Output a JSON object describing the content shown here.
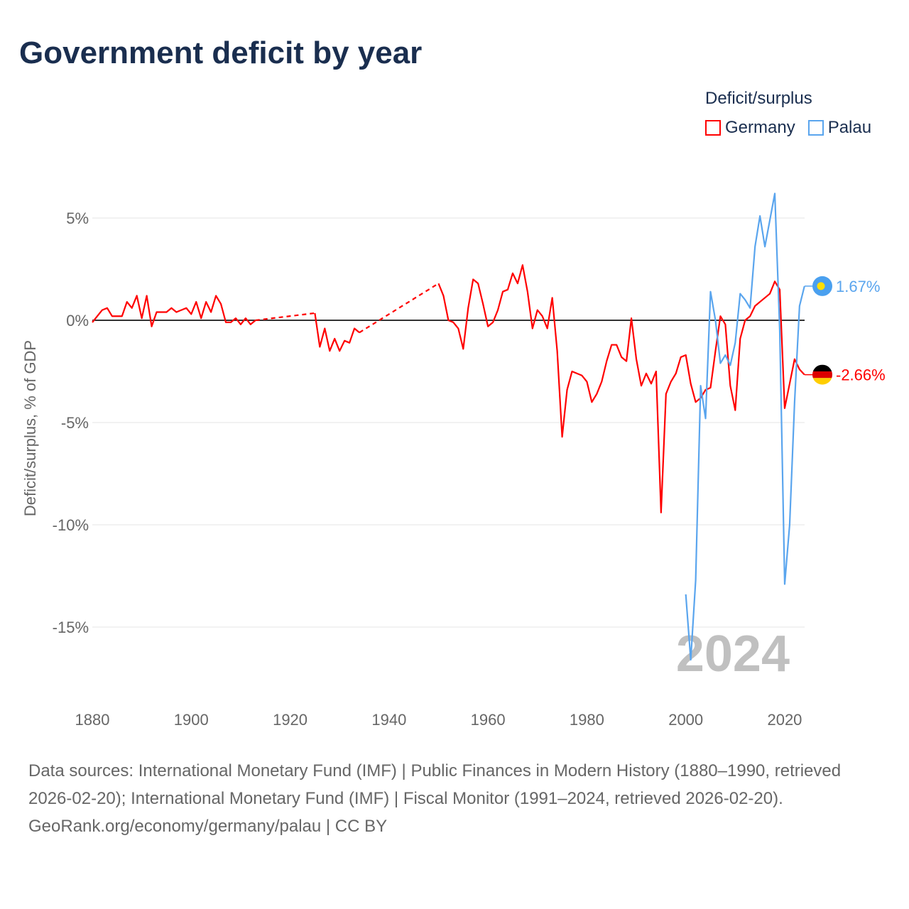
{
  "chart_data": {
    "type": "line",
    "title": "Government deficit by year",
    "ylabel": "Deficit/surplus, % of GDP",
    "xlabel": "",
    "xlim": [
      1880,
      2024
    ],
    "ylim": [
      -17,
      7
    ],
    "xticks": [
      1880,
      1900,
      1920,
      1940,
      1960,
      1980,
      2000,
      2020
    ],
    "xtick_labels": [
      "1880",
      "1900",
      "1920",
      "1940",
      "1960",
      "1980",
      "2000",
      "2020"
    ],
    "yticks": [
      5,
      0,
      -5,
      -10,
      -15
    ],
    "ytick_labels": [
      "5%",
      "0%",
      "-5%",
      "-10%",
      "-15%"
    ],
    "legend_title": "Deficit/surplus",
    "legend_position": "top-right",
    "watermark_year": "2024",
    "series": [
      {
        "name": "Germany",
        "color": "#ff0000",
        "end_label": "-2.66%",
        "x": [
          1880,
          1881,
          1882,
          1883,
          1884,
          1885,
          1886,
          1887,
          1888,
          1889,
          1890,
          1891,
          1892,
          1893,
          1894,
          1895,
          1896,
          1897,
          1898,
          1899,
          1900,
          1901,
          1902,
          1903,
          1904,
          1905,
          1906,
          1907,
          1908,
          1909,
          1910,
          1911,
          1912,
          1913,
          1925,
          1926,
          1927,
          1928,
          1929,
          1930,
          1931,
          1932,
          1933,
          1934,
          1950,
          1951,
          1952,
          1953,
          1954,
          1955,
          1956,
          1957,
          1958,
          1959,
          1960,
          1961,
          1962,
          1963,
          1964,
          1965,
          1966,
          1967,
          1968,
          1969,
          1970,
          1971,
          1972,
          1973,
          1974,
          1975,
          1976,
          1977,
          1978,
          1979,
          1980,
          1981,
          1982,
          1983,
          1984,
          1985,
          1986,
          1987,
          1988,
          1989,
          1990,
          1991,
          1992,
          1993,
          1994,
          1995,
          1996,
          1997,
          1998,
          1999,
          2000,
          2001,
          2002,
          2003,
          2004,
          2005,
          2006,
          2007,
          2008,
          2009,
          2010,
          2011,
          2012,
          2013,
          2014,
          2015,
          2016,
          2017,
          2018,
          2019,
          2020,
          2021,
          2022,
          2023,
          2024
        ],
        "values": [
          -0.1,
          0.2,
          0.5,
          0.6,
          0.2,
          0.2,
          0.2,
          0.9,
          0.6,
          1.2,
          0.1,
          1.2,
          -0.3,
          0.4,
          0.4,
          0.4,
          0.6,
          0.4,
          0.5,
          0.6,
          0.3,
          0.9,
          0.1,
          0.9,
          0.4,
          1.2,
          0.8,
          -0.1,
          -0.1,
          0.1,
          -0.2,
          0.1,
          -0.2,
          0.0,
          0.35,
          -1.3,
          -0.4,
          -1.5,
          -0.9,
          -1.5,
          -1.0,
          -1.1,
          -0.4,
          -0.6,
          1.8,
          1.2,
          0.0,
          -0.1,
          -0.4,
          -1.4,
          0.6,
          2.0,
          1.8,
          0.8,
          -0.3,
          -0.1,
          0.5,
          1.4,
          1.5,
          2.3,
          1.8,
          2.7,
          1.4,
          -0.4,
          0.5,
          0.2,
          -0.4,
          1.1,
          -1.5,
          -5.7,
          -3.4,
          -2.5,
          -2.6,
          -2.7,
          -3.0,
          -4.0,
          -3.6,
          -3.0,
          -2.0,
          -1.2,
          -1.2,
          -1.8,
          -2.0,
          0.1,
          -1.9,
          -3.2,
          -2.6,
          -3.1,
          -2.5,
          -9.4,
          -3.6,
          -3.0,
          -2.6,
          -1.8,
          -1.7,
          -3.1,
          -4.0,
          -3.8,
          -3.4,
          -3.3,
          -1.5,
          0.2,
          -0.2,
          -3.2,
          -4.4,
          -0.9,
          0.0,
          0.2,
          0.7,
          0.9,
          1.1,
          1.3,
          1.9,
          1.5,
          -4.3,
          -3.1,
          -1.9,
          -2.4,
          -2.66
        ],
        "gaps_dashed": [
          [
            1913,
            1925
          ],
          [
            1934,
            1950
          ]
        ]
      },
      {
        "name": "Palau",
        "color": "#5aa5ee",
        "end_label": "1.67%",
        "x": [
          2000,
          2001,
          2002,
          2003,
          2004,
          2005,
          2006,
          2007,
          2008,
          2009,
          2010,
          2011,
          2012,
          2013,
          2014,
          2015,
          2016,
          2017,
          2018,
          2019,
          2020,
          2021,
          2022,
          2023,
          2024
        ],
        "values": [
          -13.4,
          -16.6,
          -12.7,
          -3.2,
          -4.8,
          1.4,
          0.0,
          -2.1,
          -1.7,
          -2.2,
          -1.1,
          1.3,
          1.0,
          0.6,
          3.6,
          5.1,
          3.6,
          4.9,
          6.2,
          -0.5,
          -12.9,
          -10.0,
          -4.0,
          0.7,
          1.67
        ]
      }
    ]
  },
  "footer": {
    "sources": "Data sources: International Monetary Fund (IMF) | Public Finances in Modern History (1880–1990, retrieved 2026-02-20); International Monetary Fund (IMF) | Fiscal Monitor (1991–2024, retrieved 2026-02-20).",
    "credit": "GeoRank.org/economy/germany/palau | CC BY"
  }
}
